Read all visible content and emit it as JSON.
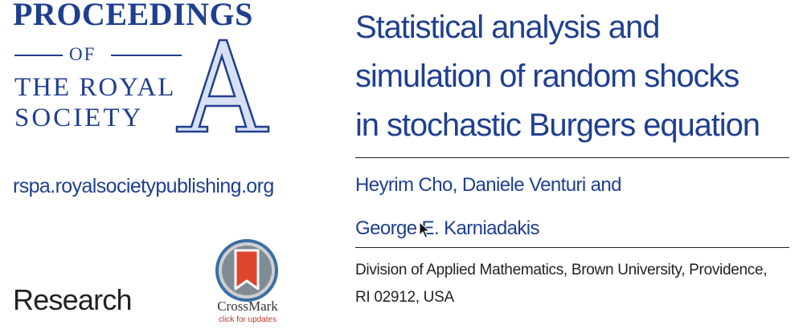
{
  "journal": {
    "logo_line1": "PROCEEDINGS",
    "logo_of": "OF",
    "logo_line3": "THE ROYAL",
    "logo_line4": "SOCIETY",
    "logo_letter": "A",
    "url": "rspa.royalsocietypublishing.org",
    "article_type": "Research"
  },
  "crossmark": {
    "name": "CrossMark",
    "subtext": "click for updates"
  },
  "article": {
    "title_lines": [
      "Statistical analysis and",
      "simulation of random shocks",
      "in stochastic Burgers equation"
    ],
    "authors_lines": [
      "Heyrim Cho, Daniele Venturi and",
      "George E. Karniadakis"
    ],
    "affiliation_lines": [
      "Division of Applied Mathematics, Brown University, Providence,",
      "RI 02912, USA"
    ]
  },
  "colors": {
    "brand_blue": "#1f3f8f",
    "crossmark_red": "#c0392b",
    "text_dark": "#222222"
  },
  "icons": {
    "logo_emblem": "royal-society-a-emblem",
    "crossmark": "crossmark-badge-icon",
    "cursor": "mouse-pointer-icon"
  }
}
